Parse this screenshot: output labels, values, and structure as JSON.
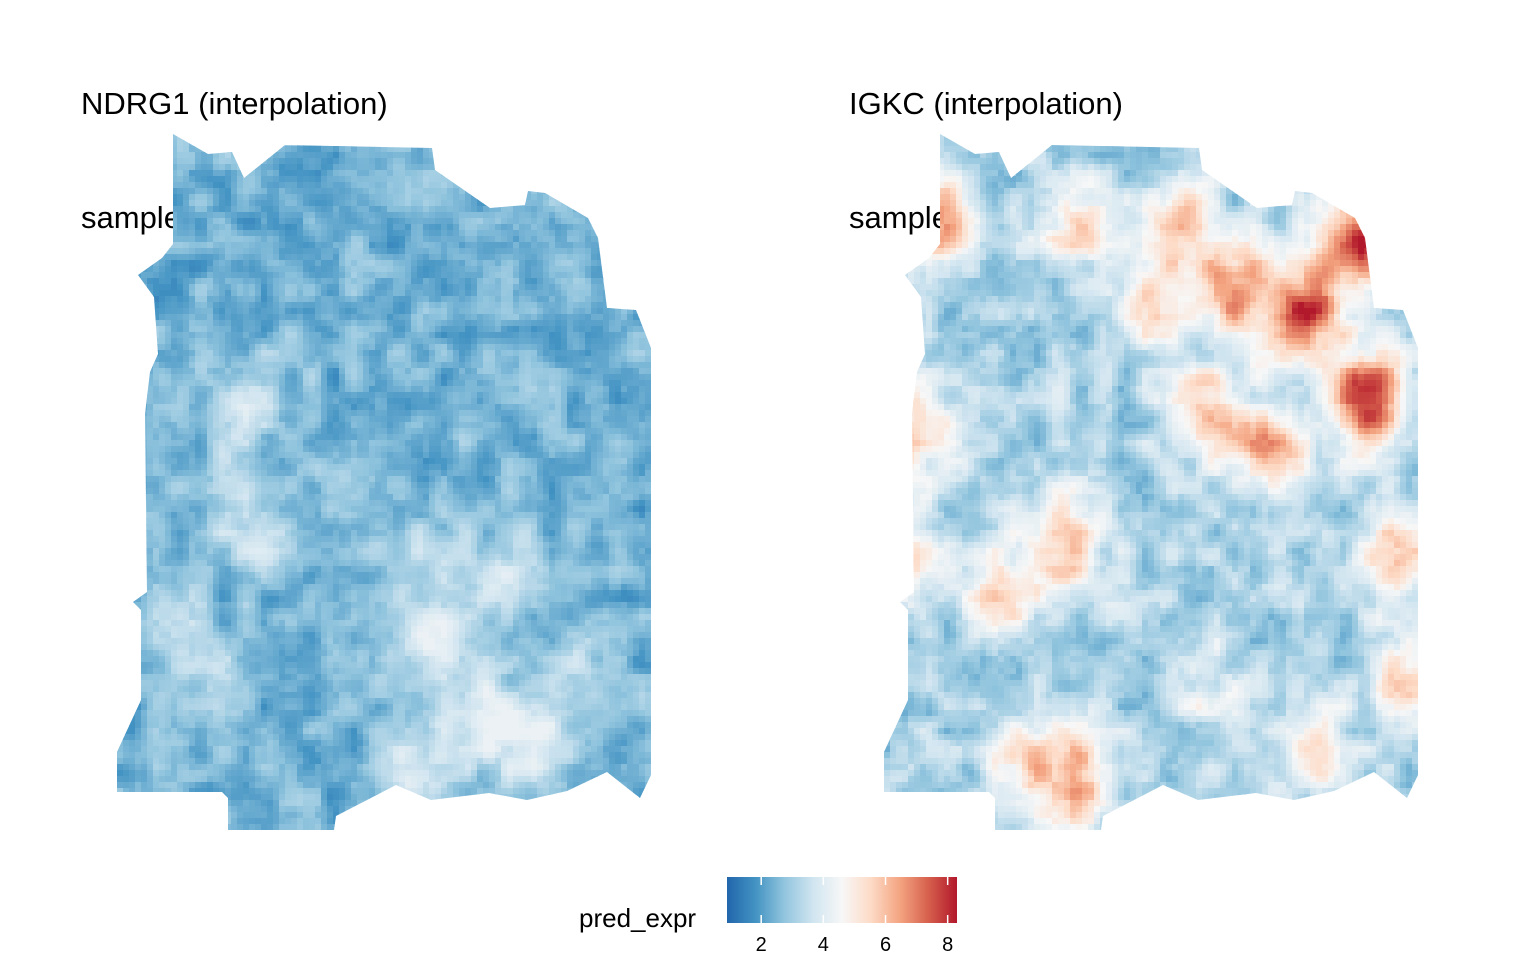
{
  "chart_data": [
    {
      "type": "heatmap",
      "gene": "NDRG1",
      "title_line1": "NDRG1 (interpolation)",
      "title_line2": "sample: sample_094c",
      "value_range": [
        1.0,
        4.3
      ],
      "mean_value": 2.4,
      "features": [
        {
          "x": 0.22,
          "y": 0.42,
          "value": 3.1
        },
        {
          "x": 0.26,
          "y": 0.35,
          "value": 3.2
        },
        {
          "x": 0.2,
          "y": 0.55,
          "value": 3.0
        },
        {
          "x": 0.26,
          "y": 0.57,
          "value": 3.3
        },
        {
          "x": 0.12,
          "y": 0.72,
          "value": 3.4
        },
        {
          "x": 0.17,
          "y": 0.8,
          "value": 3.2
        },
        {
          "x": 0.55,
          "y": 0.6,
          "value": 3.4
        },
        {
          "x": 0.72,
          "y": 0.62,
          "value": 3.6
        },
        {
          "x": 0.62,
          "y": 0.72,
          "value": 3.8
        },
        {
          "x": 0.68,
          "y": 0.84,
          "value": 4.2
        },
        {
          "x": 0.78,
          "y": 0.88,
          "value": 4.1
        },
        {
          "x": 0.55,
          "y": 0.9,
          "value": 3.7
        },
        {
          "x": 0.86,
          "y": 0.76,
          "value": 3.4
        },
        {
          "x": 0.54,
          "y": 0.74,
          "value": 3.3
        },
        {
          "x": 0.42,
          "y": 0.5,
          "value": 2.9
        }
      ]
    },
    {
      "type": "heatmap",
      "gene": "IGKC",
      "title_line1": "IGKC (interpolation)",
      "title_line2": "sample: sample_094c",
      "value_range": [
        2.3,
        8.3
      ],
      "mean_value": 3.1,
      "features": [
        {
          "x": 0.78,
          "y": 0.25,
          "value": 7.8
        },
        {
          "x": 0.88,
          "y": 0.15,
          "value": 8.0
        },
        {
          "x": 0.9,
          "y": 0.38,
          "value": 8.2
        },
        {
          "x": 0.65,
          "y": 0.22,
          "value": 6.8
        },
        {
          "x": 0.55,
          "y": 0.12,
          "value": 5.8
        },
        {
          "x": 0.72,
          "y": 0.45,
          "value": 6.6
        },
        {
          "x": 0.6,
          "y": 0.4,
          "value": 5.8
        },
        {
          "x": 0.5,
          "y": 0.25,
          "value": 5.5
        },
        {
          "x": 0.35,
          "y": 0.12,
          "value": 5.4
        },
        {
          "x": 0.1,
          "y": 0.12,
          "value": 6.2
        },
        {
          "x": 0.05,
          "y": 0.42,
          "value": 5.6
        },
        {
          "x": 0.03,
          "y": 0.6,
          "value": 5.5
        },
        {
          "x": 0.33,
          "y": 0.58,
          "value": 6.2
        },
        {
          "x": 0.22,
          "y": 0.65,
          "value": 5.3
        },
        {
          "x": 0.95,
          "y": 0.6,
          "value": 5.9
        },
        {
          "x": 0.97,
          "y": 0.78,
          "value": 5.5
        },
        {
          "x": 0.35,
          "y": 0.92,
          "value": 6.5
        },
        {
          "x": 0.25,
          "y": 0.9,
          "value": 5.2
        },
        {
          "x": 0.8,
          "y": 0.88,
          "value": 5.2
        },
        {
          "x": 0.6,
          "y": 0.8,
          "value": 4.2
        }
      ]
    }
  ],
  "legend": {
    "title": "pred_expr",
    "min": 0.9,
    "max": 8.3,
    "ticks": [
      2,
      4,
      6,
      8
    ],
    "colors": [
      "#2166ac",
      "#4393c3",
      "#92c5de",
      "#d1e5f0",
      "#f7f7f7",
      "#fddbc7",
      "#f4a582",
      "#d6604d",
      "#b2182b"
    ]
  }
}
